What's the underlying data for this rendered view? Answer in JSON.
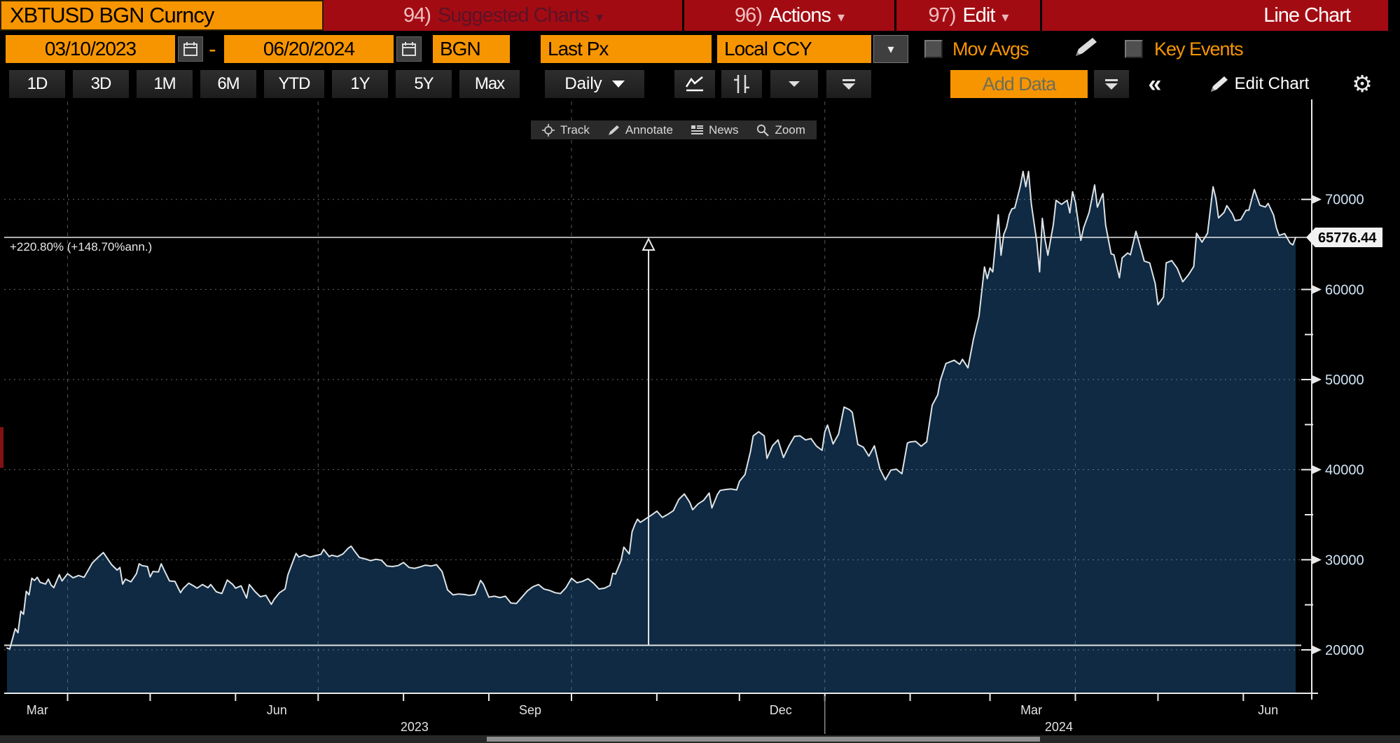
{
  "titlebar": {
    "security": "XBTUSD BGN Curncy",
    "menus": [
      {
        "num": "94)",
        "label": "Suggested Charts",
        "disabled": true
      },
      {
        "num": "96)",
        "label": "Actions",
        "disabled": false
      },
      {
        "num": "97)",
        "label": "Edit",
        "disabled": false
      }
    ],
    "right_label": "Line Chart"
  },
  "settings_row": {
    "date_from": "03/10/2023",
    "date_separator": "-",
    "date_to": "06/20/2024",
    "source": "BGN",
    "field": "Last Px",
    "currency": "Local CCY",
    "mov_avgs_label": "Mov Avgs",
    "key_events_label": "Key Events"
  },
  "toolbar": {
    "ranges": [
      "1D",
      "3D",
      "1M",
      "6M",
      "YTD",
      "1Y",
      "5Y",
      "Max"
    ],
    "period": "Daily",
    "add_data_label": "Add Data",
    "edit_chart_label": "Edit Chart"
  },
  "chart_tools": {
    "track": "Track",
    "annotate": "Annotate",
    "news": "News",
    "zoom": "Zoom"
  },
  "icons": {
    "chevron_down": "▾",
    "double_chevron_left": "«",
    "gear": "⚙"
  },
  "colors": {
    "accent_orange": "#f79500",
    "bar_red": "#a30b12",
    "accent_blue": "#1565f0",
    "area_fill": "#0f2a42",
    "price_line": "#dde3e8",
    "axis_label": "#cfe4f6",
    "grid_h": "#a0a0a0",
    "grid_v": "#6e95a5"
  },
  "chart_data": {
    "type": "area",
    "title": "XBTUSD BGN Curncy Last Px, Daily, 03/10/2023 - 06/20/2024",
    "x_range": [
      "03/10/2023",
      "06/20/2024"
    ],
    "day_span": 468,
    "ylim": [
      15180,
      80860
    ],
    "y_ticks": [
      20000,
      30000,
      40000,
      50000,
      60000,
      70000
    ],
    "y_minor_ticks": [
      25000,
      35000,
      45000,
      55000
    ],
    "month_ticks_days": [
      22,
      52,
      83,
      113,
      144,
      175,
      205,
      236,
      266,
      297,
      328,
      357,
      388,
      418,
      449
    ],
    "month_labels": [
      {
        "label": "Mar",
        "day": 11
      },
      {
        "label": "Jun",
        "day": 98
      },
      {
        "label": "Sep",
        "day": 190
      },
      {
        "label": "Dec",
        "day": 281
      },
      {
        "label": "Mar",
        "day": 372
      },
      {
        "label": "Jun",
        "day": 458
      }
    ],
    "year_labels": [
      {
        "label": "2023",
        "day": 148
      },
      {
        "label": "2024",
        "day": 382
      }
    ],
    "year_divider_day": 297,
    "quarter_grid_days": [
      22,
      113,
      205,
      297,
      388
    ],
    "last_price": 65776.44,
    "last_price_label": "65776.44",
    "start_price": 20504,
    "tracker_day": 233,
    "pct_annotation": "+220.80% (+148.70%ann.)",
    "legend": "none",
    "grid": true,
    "series": [
      [
        0,
        20200
      ],
      [
        1,
        20100
      ],
      [
        3,
        22350
      ],
      [
        4,
        21900
      ],
      [
        5,
        24300
      ],
      [
        6,
        23950
      ],
      [
        7,
        26500
      ],
      [
        8,
        26100
      ],
      [
        9,
        27950
      ],
      [
        10,
        27700
      ],
      [
        11,
        28050
      ],
      [
        12,
        27500
      ],
      [
        14,
        27300
      ],
      [
        15,
        27850
      ],
      [
        16,
        27200
      ],
      [
        17,
        26900
      ],
      [
        19,
        28350
      ],
      [
        20,
        27650
      ],
      [
        22,
        28450
      ],
      [
        24,
        28000
      ],
      [
        26,
        28250
      ],
      [
        28,
        28050
      ],
      [
        31,
        29650
      ],
      [
        33,
        30250
      ],
      [
        35,
        30800
      ],
      [
        36,
        30350
      ],
      [
        38,
        29450
      ],
      [
        40,
        28850
      ],
      [
        41,
        29150
      ],
      [
        42,
        27300
      ],
      [
        43,
        27850
      ],
      [
        45,
        27550
      ],
      [
        47,
        28450
      ],
      [
        48,
        29550
      ],
      [
        49,
        29350
      ],
      [
        51,
        29250
      ],
      [
        52,
        28100
      ],
      [
        53,
        28700
      ],
      [
        55,
        28650
      ],
      [
        56,
        29550
      ],
      [
        57,
        28900
      ],
      [
        59,
        27650
      ],
      [
        61,
        27600
      ],
      [
        63,
        26350
      ],
      [
        64,
        26800
      ],
      [
        66,
        27400
      ],
      [
        68,
        27050
      ],
      [
        69,
        26850
      ],
      [
        71,
        27250
      ],
      [
        73,
        26900
      ],
      [
        74,
        27250
      ],
      [
        76,
        26450
      ],
      [
        78,
        26250
      ],
      [
        80,
        27750
      ],
      [
        82,
        27250
      ],
      [
        83,
        26850
      ],
      [
        85,
        27100
      ],
      [
        87,
        25750
      ],
      [
        88,
        27250
      ],
      [
        90,
        26500
      ],
      [
        92,
        25900
      ],
      [
        94,
        26050
      ],
      [
        96,
        25050
      ],
      [
        97,
        25600
      ],
      [
        99,
        26350
      ],
      [
        101,
        26750
      ],
      [
        102,
        28300
      ],
      [
        104,
        29950
      ],
      [
        105,
        30700
      ],
      [
        106,
        30300
      ],
      [
        108,
        30550
      ],
      [
        110,
        30300
      ],
      [
        112,
        30450
      ],
      [
        114,
        30600
      ],
      [
        115,
        31150
      ],
      [
        117,
        30350
      ],
      [
        118,
        30500
      ],
      [
        120,
        30350
      ],
      [
        122,
        30650
      ],
      [
        124,
        31300
      ],
      [
        125,
        31500
      ],
      [
        126,
        31050
      ],
      [
        128,
        30250
      ],
      [
        130,
        30100
      ],
      [
        132,
        29900
      ],
      [
        134,
        30050
      ],
      [
        136,
        29950
      ],
      [
        138,
        29300
      ],
      [
        140,
        29250
      ],
      [
        142,
        29350
      ],
      [
        144,
        29700
      ],
      [
        146,
        29150
      ],
      [
        148,
        29050
      ],
      [
        150,
        29200
      ],
      [
        152,
        29400
      ],
      [
        154,
        29300
      ],
      [
        156,
        29450
      ],
      [
        158,
        28700
      ],
      [
        160,
        26650
      ],
      [
        162,
        26100
      ],
      [
        164,
        26200
      ],
      [
        166,
        26150
      ],
      [
        168,
        26050
      ],
      [
        170,
        26150
      ],
      [
        172,
        27700
      ],
      [
        173,
        27300
      ],
      [
        175,
        25850
      ],
      [
        177,
        25950
      ],
      [
        179,
        25800
      ],
      [
        181,
        25950
      ],
      [
        183,
        25200
      ],
      [
        185,
        25150
      ],
      [
        187,
        25850
      ],
      [
        189,
        26550
      ],
      [
        191,
        27000
      ],
      [
        193,
        27250
      ],
      [
        195,
        26750
      ],
      [
        197,
        26600
      ],
      [
        199,
        26350
      ],
      [
        201,
        26250
      ],
      [
        203,
        26900
      ],
      [
        205,
        27950
      ],
      [
        207,
        27450
      ],
      [
        209,
        27600
      ],
      [
        211,
        27900
      ],
      [
        213,
        27400
      ],
      [
        215,
        26750
      ],
      [
        217,
        26850
      ],
      [
        219,
        27150
      ],
      [
        220,
        28500
      ],
      [
        221,
        28400
      ],
      [
        223,
        29900
      ],
      [
        224,
        31400
      ],
      [
        226,
        30650
      ],
      [
        227,
        33100
      ],
      [
        228,
        33900
      ],
      [
        229,
        34500
      ],
      [
        230,
        34150
      ],
      [
        232,
        34550
      ],
      [
        234,
        34950
      ],
      [
        236,
        35400
      ],
      [
        238,
        34700
      ],
      [
        240,
        35050
      ],
      [
        242,
        35450
      ],
      [
        244,
        36700
      ],
      [
        246,
        37300
      ],
      [
        248,
        36350
      ],
      [
        249,
        35550
      ],
      [
        251,
        36200
      ],
      [
        253,
        36600
      ],
      [
        255,
        37400
      ],
      [
        256,
        35750
      ],
      [
        258,
        37250
      ],
      [
        259,
        37700
      ],
      [
        261,
        37800
      ],
      [
        263,
        37850
      ],
      [
        265,
        37750
      ],
      [
        266,
        38700
      ],
      [
        268,
        39450
      ],
      [
        270,
        41990
      ],
      [
        271,
        43750
      ],
      [
        273,
        44200
      ],
      [
        275,
        43750
      ],
      [
        276,
        41250
      ],
      [
        278,
        42650
      ],
      [
        280,
        43300
      ],
      [
        282,
        41350
      ],
      [
        284,
        42650
      ],
      [
        286,
        43700
      ],
      [
        288,
        43750
      ],
      [
        290,
        43300
      ],
      [
        292,
        43450
      ],
      [
        294,
        42600
      ],
      [
        296,
        42150
      ],
      [
        297,
        44200
      ],
      [
        298,
        44950
      ],
      [
        300,
        42850
      ],
      [
        302,
        43950
      ],
      [
        304,
        46950
      ],
      [
        306,
        46650
      ],
      [
        307,
        46350
      ],
      [
        309,
        42800
      ],
      [
        311,
        42500
      ],
      [
        313,
        41500
      ],
      [
        315,
        42650
      ],
      [
        317,
        40100
      ],
      [
        319,
        38870
      ],
      [
        321,
        39950
      ],
      [
        323,
        40050
      ],
      [
        325,
        39550
      ],
      [
        327,
        42950
      ],
      [
        328,
        43080
      ],
      [
        330,
        43150
      ],
      [
        332,
        42600
      ],
      [
        334,
        43100
      ],
      [
        336,
        47150
      ],
      [
        338,
        48300
      ],
      [
        339,
        49950
      ],
      [
        341,
        51800
      ],
      [
        342,
        51900
      ],
      [
        344,
        52150
      ],
      [
        346,
        51700
      ],
      [
        347,
        52250
      ],
      [
        349,
        51300
      ],
      [
        351,
        54500
      ],
      [
        353,
        57050
      ],
      [
        355,
        62500
      ],
      [
        356,
        61200
      ],
      [
        357,
        62400
      ],
      [
        358,
        61950
      ],
      [
        360,
        68300
      ],
      [
        361,
        63800
      ],
      [
        362,
        66100
      ],
      [
        363,
        66900
      ],
      [
        364,
        68300
      ],
      [
        365,
        68950
      ],
      [
        366,
        69050
      ],
      [
        368,
        71450
      ],
      [
        369,
        73100
      ],
      [
        370,
        71400
      ],
      [
        371,
        73100
      ],
      [
        372,
        69500
      ],
      [
        374,
        65300
      ],
      [
        375,
        61950
      ],
      [
        376,
        67900
      ],
      [
        377,
        65500
      ],
      [
        378,
        63800
      ],
      [
        380,
        67200
      ],
      [
        381,
        69900
      ],
      [
        382,
        69650
      ],
      [
        383,
        69450
      ],
      [
        385,
        69900
      ],
      [
        386,
        68500
      ],
      [
        387,
        70850
      ],
      [
        388,
        69700
      ],
      [
        390,
        65450
      ],
      [
        391,
        66850
      ],
      [
        393,
        68550
      ],
      [
        395,
        71600
      ],
      [
        396,
        69150
      ],
      [
        398,
        70650
      ],
      [
        399,
        67150
      ],
      [
        401,
        63950
      ],
      [
        402,
        63850
      ],
      [
        404,
        61300
      ],
      [
        405,
        63500
      ],
      [
        407,
        64050
      ],
      [
        408,
        63850
      ],
      [
        410,
        66450
      ],
      [
        412,
        64300
      ],
      [
        413,
        63150
      ],
      [
        415,
        62950
      ],
      [
        417,
        60650
      ],
      [
        418,
        58300
      ],
      [
        420,
        59150
      ],
      [
        421,
        62950
      ],
      [
        423,
        63200
      ],
      [
        425,
        62350
      ],
      [
        427,
        60850
      ],
      [
        429,
        61600
      ],
      [
        431,
        62550
      ],
      [
        432,
        66250
      ],
      [
        434,
        65250
      ],
      [
        436,
        66250
      ],
      [
        438,
        71400
      ],
      [
        439,
        70150
      ],
      [
        440,
        67950
      ],
      [
        442,
        68550
      ],
      [
        443,
        69300
      ],
      [
        445,
        68400
      ],
      [
        446,
        67650
      ],
      [
        448,
        67750
      ],
      [
        450,
        68800
      ],
      [
        451,
        68800
      ],
      [
        453,
        71100
      ],
      [
        455,
        69350
      ],
      [
        457,
        69150
      ],
      [
        458,
        69550
      ],
      [
        460,
        68250
      ],
      [
        461,
        66850
      ],
      [
        462,
        66000
      ],
      [
        464,
        66200
      ],
      [
        466,
        65150
      ],
      [
        467,
        64950
      ],
      [
        468,
        65776
      ]
    ]
  }
}
